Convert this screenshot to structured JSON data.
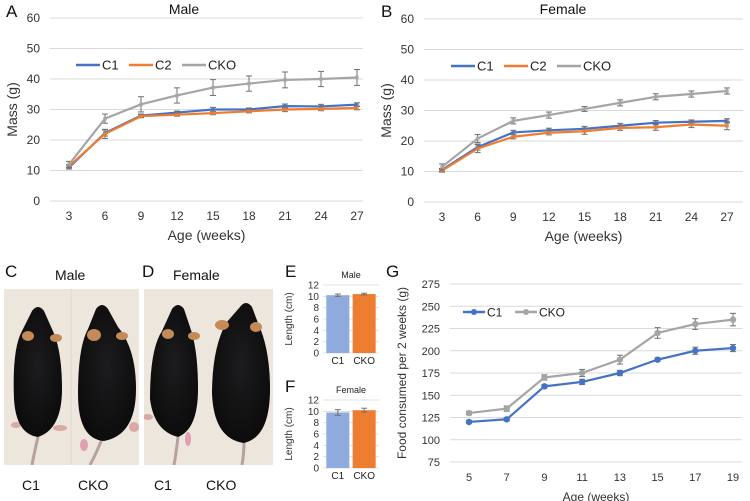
{
  "figure": {
    "panels": {
      "A": {
        "letter": "A"
      },
      "B": {
        "letter": "B"
      },
      "C": {
        "letter": "C",
        "title": "Male",
        "labels": [
          "C1",
          "CKO"
        ]
      },
      "D": {
        "letter": "D",
        "title": "Female",
        "labels": [
          "C1",
          "CKO"
        ]
      },
      "E": {
        "letter": "E"
      },
      "F": {
        "letter": "F"
      },
      "G": {
        "letter": "G"
      }
    },
    "colors": {
      "C1": "#4472c4",
      "C2": "#ed7d31",
      "CKO": "#a5a5a5",
      "bar_C1": "#8faadc",
      "bar_CKO": "#ed7d31",
      "errorbar": "#707070",
      "grid": "#d9d9d9"
    }
  },
  "chart_data": [
    {
      "id": "A",
      "type": "line",
      "title": "Male",
      "xlabel": "Age (weeks)",
      "ylabel": "Mass (g)",
      "x": [
        3,
        6,
        9,
        12,
        15,
        18,
        21,
        24,
        27
      ],
      "ylim": [
        0,
        60
      ],
      "yticks": [
        0,
        10,
        20,
        30,
        40,
        50,
        60
      ],
      "grid": true,
      "legend": "top-left",
      "series": [
        {
          "name": "C1",
          "values": [
            11.0,
            22.3,
            28.0,
            29.0,
            30.0,
            30.0,
            31.1,
            31.0,
            31.6
          ],
          "errors": [
            0.5,
            1.0,
            0.5,
            0.5,
            0.7,
            0.5,
            0.7,
            0.7,
            0.6
          ]
        },
        {
          "name": "C2",
          "values": [
            11.4,
            22.0,
            27.8,
            28.3,
            28.8,
            29.4,
            30.0,
            30.2,
            30.5
          ],
          "errors": [
            0.5,
            1.5,
            0.5,
            0.5,
            0.5,
            0.5,
            0.7,
            0.6,
            0.6
          ]
        },
        {
          "name": "CKO",
          "values": [
            12.0,
            27.0,
            31.7,
            34.6,
            37.2,
            38.5,
            39.7,
            40.0,
            40.5
          ],
          "errors": [
            1.0,
            1.5,
            2.5,
            2.5,
            2.6,
            2.5,
            2.6,
            2.5,
            2.6
          ]
        }
      ]
    },
    {
      "id": "B",
      "type": "line",
      "title": "Female",
      "xlabel": "Age (weeks)",
      "ylabel": "Mass (g)",
      "x": [
        3,
        6,
        9,
        12,
        15,
        18,
        21,
        24,
        27
      ],
      "ylim": [
        0,
        60
      ],
      "yticks": [
        0,
        10,
        20,
        30,
        40,
        50,
        60
      ],
      "grid": true,
      "legend": "top-left",
      "series": [
        {
          "name": "C1",
          "values": [
            10.5,
            18.0,
            22.8,
            23.5,
            24.0,
            25.0,
            26.0,
            26.3,
            26.6
          ],
          "errors": [
            0.5,
            1.0,
            0.7,
            0.7,
            0.8,
            0.8,
            0.7,
            0.6,
            0.7
          ]
        },
        {
          "name": "C2",
          "values": [
            10.3,
            17.5,
            21.4,
            22.7,
            23.2,
            24.3,
            24.5,
            25.4,
            25.0
          ],
          "errors": [
            0.5,
            1.3,
            0.7,
            0.7,
            1.0,
            0.8,
            1.0,
            1.0,
            1.3
          ]
        },
        {
          "name": "CKO",
          "values": [
            11.5,
            20.8,
            26.6,
            28.5,
            30.5,
            32.5,
            34.5,
            35.4,
            36.4
          ],
          "errors": [
            1.0,
            1.3,
            1.0,
            1.0,
            0.8,
            1.0,
            1.0,
            1.0,
            1.0
          ]
        }
      ]
    },
    {
      "id": "E",
      "type": "bar",
      "title": "Male",
      "ylabel": "Length (cm)",
      "categories": [
        "C1",
        "CKO"
      ],
      "values": [
        10.2,
        10.4
      ],
      "errors": [
        0.2,
        0.15
      ],
      "ylim": [
        0,
        12
      ],
      "yticks": [
        0,
        2,
        4,
        6,
        8,
        10,
        12
      ],
      "grid": true
    },
    {
      "id": "F",
      "type": "bar",
      "title": "Female",
      "ylabel": "Length (cm)",
      "categories": [
        "C1",
        "CKO"
      ],
      "values": [
        9.8,
        10.2
      ],
      "errors": [
        0.5,
        0.35
      ],
      "ylim": [
        0,
        12
      ],
      "yticks": [
        0,
        2,
        4,
        6,
        8,
        10,
        12
      ],
      "grid": true
    },
    {
      "id": "G",
      "type": "line",
      "title": "",
      "xlabel": "Age (weeks)",
      "ylabel": "Food consumed per 2 weeks (g)",
      "x": [
        5,
        7,
        9,
        11,
        13,
        15,
        17,
        19
      ],
      "ylim": [
        75,
        275
      ],
      "yticks": [
        75,
        100,
        125,
        150,
        175,
        200,
        225,
        250,
        275
      ],
      "grid": true,
      "legend": "top-left",
      "markers": true,
      "series": [
        {
          "name": "C1",
          "values": [
            120,
            123,
            160,
            165,
            175,
            190,
            200,
            203
          ],
          "errors": [
            1.5,
            2,
            2,
            3,
            3,
            2,
            4,
            4
          ]
        },
        {
          "name": "CKO",
          "values": [
            130,
            135,
            170,
            175,
            190,
            220,
            230,
            235
          ],
          "errors": [
            2,
            3,
            3,
            4,
            5,
            6,
            6,
            7
          ]
        }
      ]
    }
  ]
}
